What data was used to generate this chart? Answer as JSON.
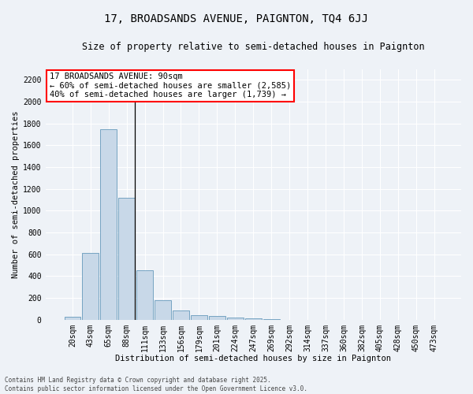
{
  "title": "17, BROADSANDS AVENUE, PAIGNTON, TQ4 6JJ",
  "subtitle": "Size of property relative to semi-detached houses in Paignton",
  "xlabel": "Distribution of semi-detached houses by size in Paignton",
  "ylabel": "Number of semi-detached properties",
  "categories": [
    "20sqm",
    "43sqm",
    "65sqm",
    "88sqm",
    "111sqm",
    "133sqm",
    "156sqm",
    "179sqm",
    "201sqm",
    "224sqm",
    "247sqm",
    "269sqm",
    "292sqm",
    "314sqm",
    "337sqm",
    "360sqm",
    "382sqm",
    "405sqm",
    "428sqm",
    "450sqm",
    "473sqm"
  ],
  "values": [
    25,
    610,
    1750,
    1120,
    455,
    180,
    88,
    42,
    33,
    18,
    10,
    3,
    1,
    0,
    0,
    0,
    0,
    0,
    0,
    0,
    0
  ],
  "bar_color": "#c8d8e8",
  "bar_edge_color": "#6699bb",
  "highlight_bar_index": 3,
  "property_size": "90sqm",
  "annotation_line1": "17 BROADSANDS AVENUE: 90sqm",
  "annotation_line2": "← 60% of semi-detached houses are smaller (2,585)",
  "annotation_line3": "40% of semi-detached houses are larger (1,739) →",
  "footer_text": "Contains HM Land Registry data © Crown copyright and database right 2025.\nContains public sector information licensed under the Open Government Licence v3.0.",
  "ylim": [
    0,
    2300
  ],
  "yticks": [
    0,
    200,
    400,
    600,
    800,
    1000,
    1200,
    1400,
    1600,
    1800,
    2000,
    2200
  ],
  "background_color": "#eef2f7",
  "grid_color": "white",
  "title_fontsize": 10,
  "subtitle_fontsize": 8.5,
  "axis_label_fontsize": 7.5,
  "tick_fontsize": 7,
  "annotation_fontsize": 7.5,
  "footer_fontsize": 5.5
}
